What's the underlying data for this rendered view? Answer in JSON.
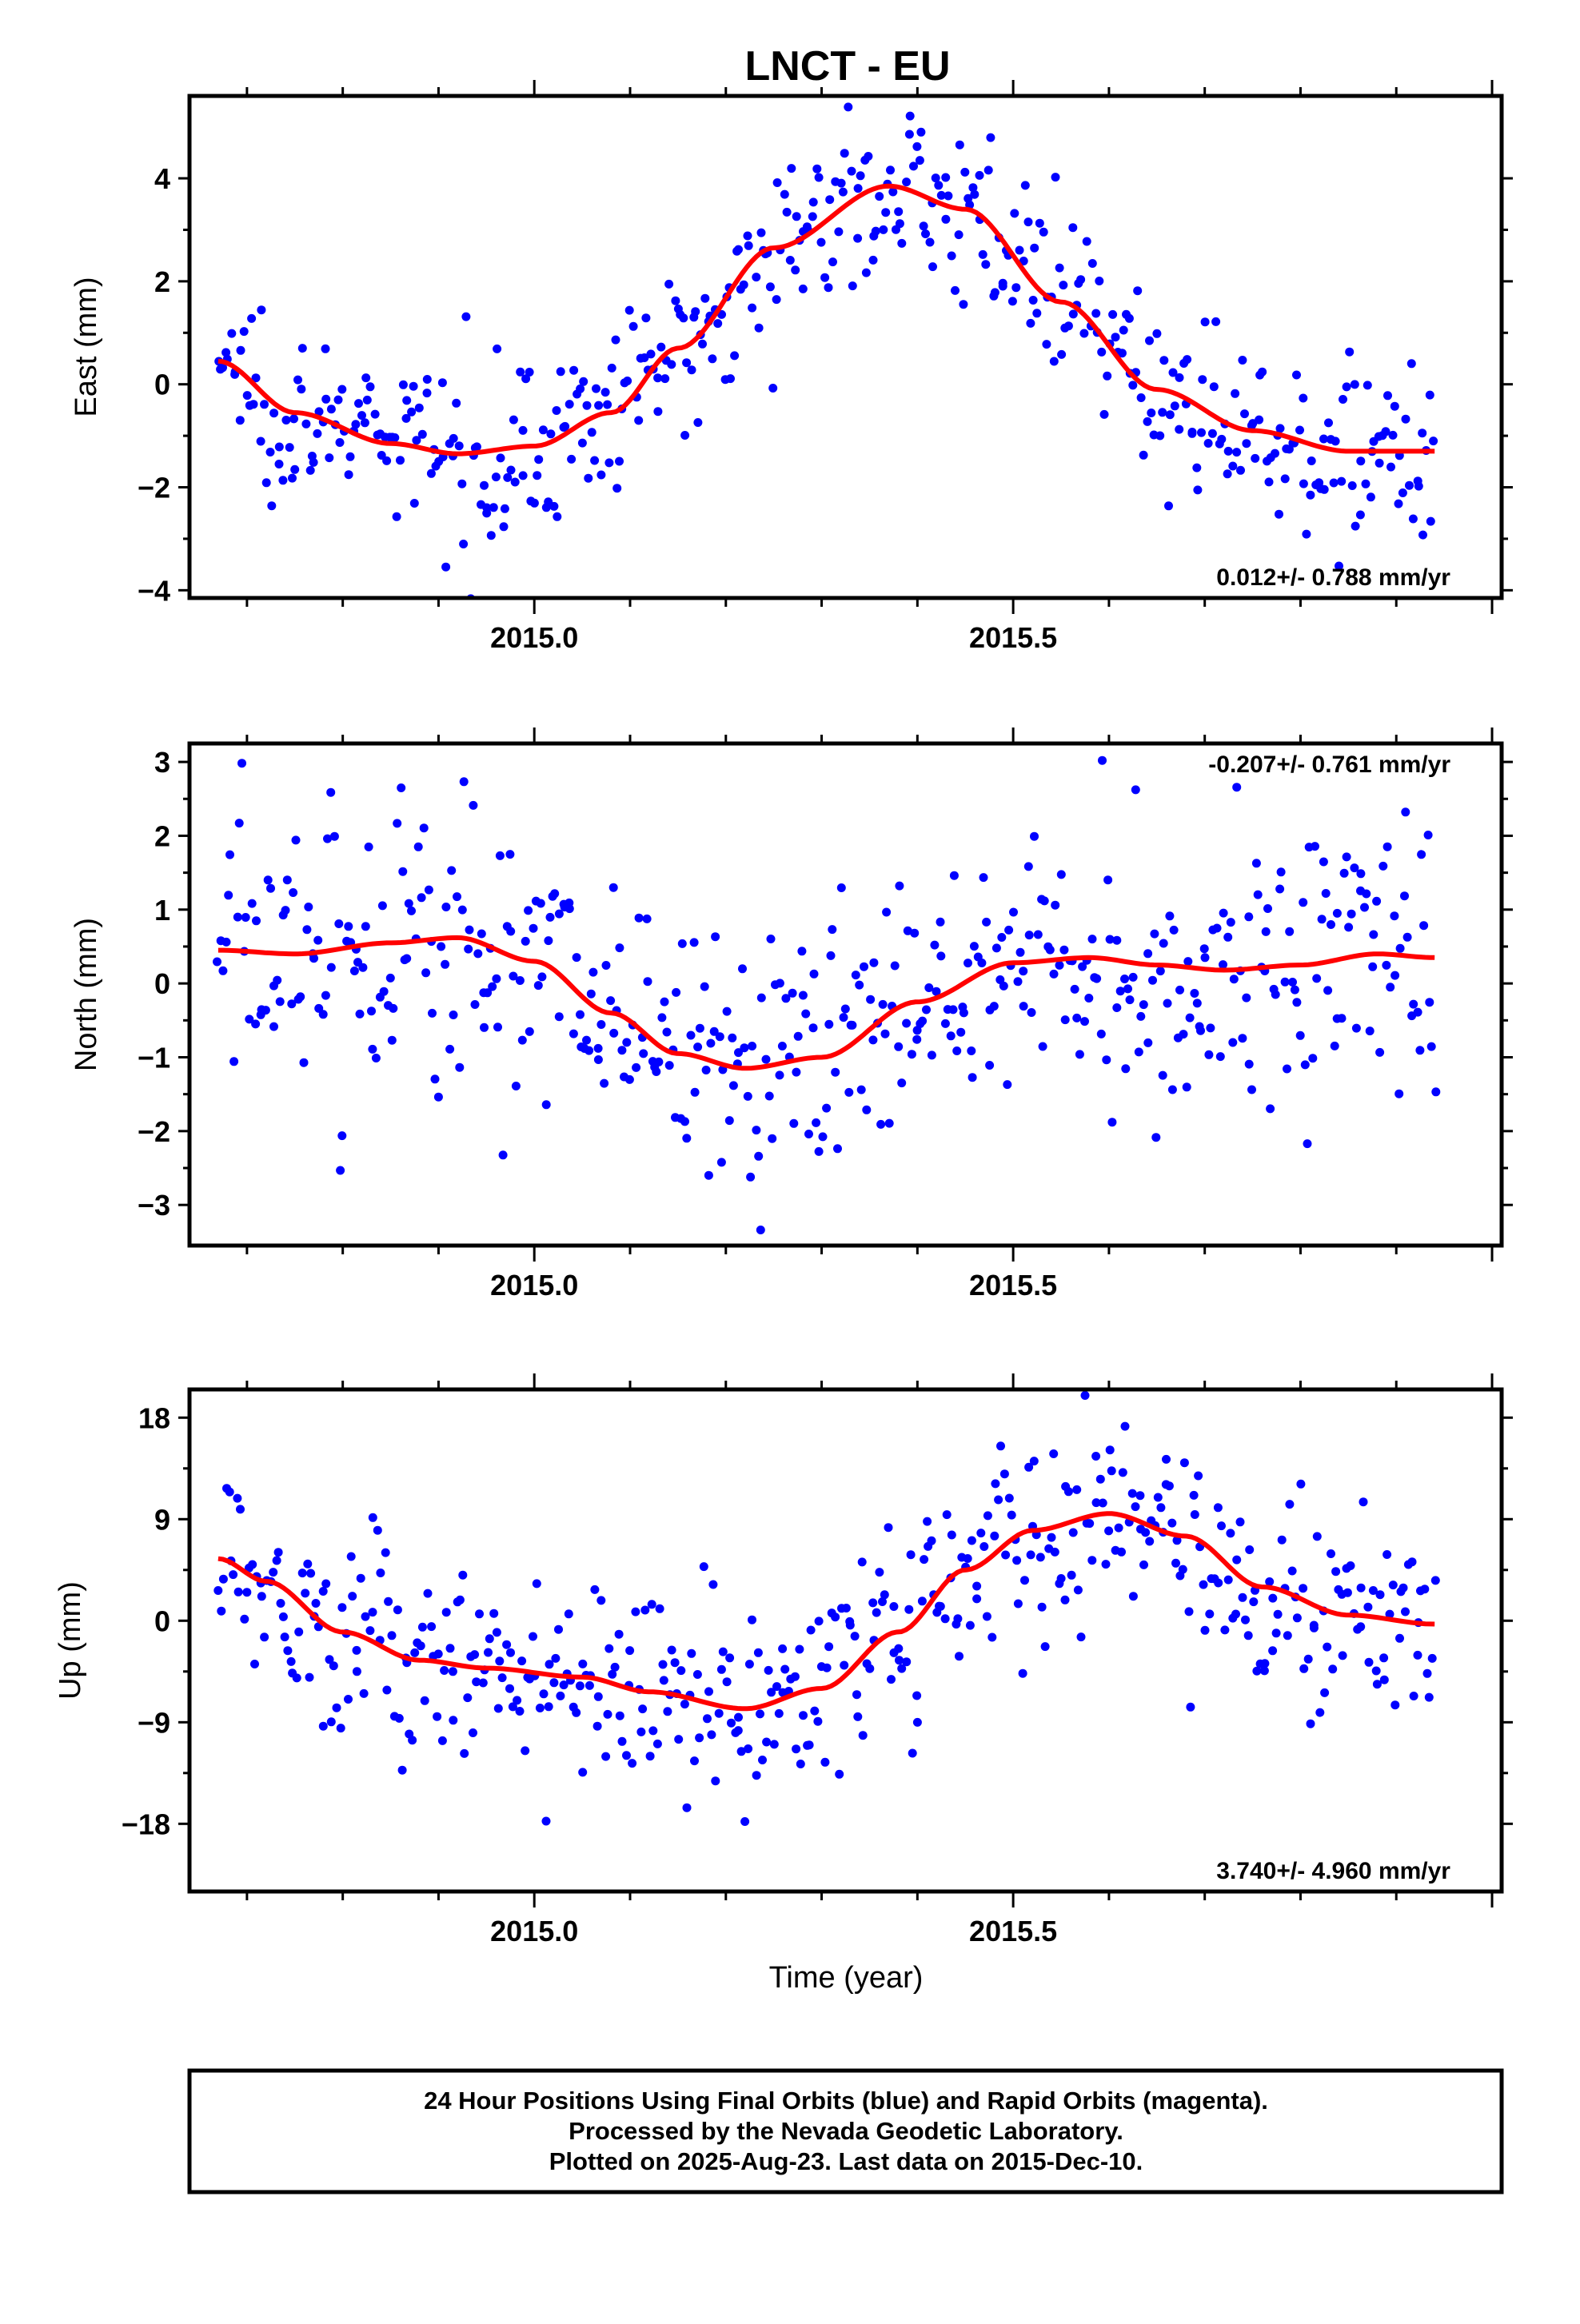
{
  "title": "LNCT - EU",
  "xlabel": "Time (year)",
  "colors": {
    "points": "#0000ff",
    "fit": "#ff0000",
    "frame": "#000000"
  },
  "footer": {
    "lines": [
      "24 Hour Positions Using Final Orbits (blue) and Rapid Orbits (magenta).",
      "Processed by the Nevada Geodetic Laboratory.",
      "Plotted on 2025-Aug-23. Last data on 2015-Dec-10."
    ]
  },
  "chart_data": [
    {
      "type": "scatter",
      "ylabel": "East (mm)",
      "xlim": [
        2014.64,
        2016.01
      ],
      "ylim": [
        -4.15,
        5.6
      ],
      "xticks_major": [
        2015.0,
        2015.5
      ],
      "xtick_labels": [
        "2015.0",
        "2015.5"
      ],
      "yticks": [
        -4,
        -2,
        0,
        2,
        4
      ],
      "ytick_labels": [
        "−4",
        "−2",
        "0",
        "2",
        "4"
      ],
      "rate_text": "0.012+/- 0.788 mm/yr",
      "rate_position": "bottom-right",
      "fit_curve": {
        "x": [
          2014.67,
          2014.75,
          2014.85,
          2014.92,
          2015.0,
          2015.08,
          2015.15,
          2015.25,
          2015.37,
          2015.45,
          2015.55,
          2015.65,
          2015.75,
          2015.85,
          2015.94
        ],
        "y": [
          0.45,
          -0.55,
          -1.15,
          -1.35,
          -1.2,
          -0.55,
          0.7,
          2.65,
          3.85,
          3.4,
          1.6,
          -0.1,
          -0.9,
          -1.3,
          -1.3
        ]
      },
      "trend": {
        "x": [
          2014.67,
          2015.94
        ],
        "amp": [
          1.2,
          1.1
        ],
        "noise": 0.85
      }
    },
    {
      "type": "scatter",
      "ylabel": "North (mm)",
      "xlim": [
        2014.64,
        2016.01
      ],
      "ylim": [
        -3.55,
        3.25
      ],
      "xticks_major": [
        2015.0,
        2015.5
      ],
      "xtick_labels": [
        "2015.0",
        "2015.5"
      ],
      "yticks": [
        -3,
        -2,
        -1,
        0,
        1,
        2,
        3
      ],
      "ytick_labels": [
        "−3",
        "−2",
        "−1",
        "0",
        "1",
        "2",
        "3"
      ],
      "rate_text": "-0.207+/- 0.761 mm/yr",
      "rate_position": "top-right",
      "fit_curve": {
        "x": [
          2014.67,
          2014.75,
          2014.85,
          2014.92,
          2015.0,
          2015.08,
          2015.15,
          2015.22,
          2015.3,
          2015.4,
          2015.5,
          2015.58,
          2015.65,
          2015.72,
          2015.8,
          2015.88,
          2015.94
        ],
        "y": [
          0.45,
          0.4,
          0.55,
          0.62,
          0.3,
          -0.4,
          -0.95,
          -1.15,
          -1.0,
          -0.25,
          0.28,
          0.35,
          0.25,
          0.18,
          0.25,
          0.4,
          0.35
        ]
      },
      "trend": {
        "x": [
          2014.67,
          2015.94
        ],
        "noise": 1.05
      }
    },
    {
      "type": "scatter",
      "ylabel": "Up (mm)",
      "xlim": [
        2014.64,
        2016.01
      ],
      "ylim": [
        -24.0,
        20.5
      ],
      "xticks_major": [
        2015.0,
        2015.5
      ],
      "xtick_labels": [
        "2015.0",
        "2015.5"
      ],
      "yticks": [
        -18,
        -9,
        0,
        9,
        18
      ],
      "ytick_labels": [
        "−18",
        "−9",
        "0",
        "9",
        "18"
      ],
      "rate_text": "3.740+/- 4.960 mm/yr",
      "rate_position": "bottom-right",
      "fit_curve": {
        "x": [
          2014.67,
          2014.72,
          2014.8,
          2014.88,
          2014.95,
          2015.05,
          2015.12,
          2015.22,
          2015.3,
          2015.38,
          2015.45,
          2015.52,
          2015.6,
          2015.68,
          2015.76,
          2015.85,
          2015.94
        ],
        "y": [
          5.5,
          3.5,
          -1.0,
          -3.5,
          -4.2,
          -5.0,
          -6.3,
          -7.8,
          -6.0,
          -1.0,
          4.5,
          8.0,
          9.5,
          7.5,
          3.0,
          0.5,
          -0.3
        ]
      },
      "trend": {
        "x": [
          2014.67,
          2015.94
        ],
        "noise": 4.8
      }
    }
  ]
}
